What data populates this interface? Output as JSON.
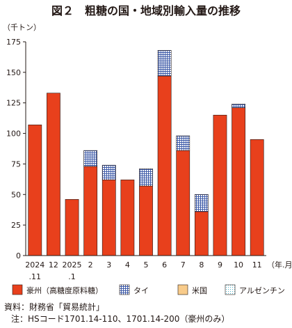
{
  "chart_data": {
    "type": "bar",
    "title": "図２　粗糖の国・地域別輸入量の推移",
    "ylabel": "（千トン）",
    "xlabel": "（年.月）",
    "ylim": [
      0,
      175
    ],
    "yticks": [
      0,
      25,
      50,
      75,
      100,
      125,
      150,
      175
    ],
    "grid": false,
    "legend_position": "bottom",
    "categories": [
      [
        "2024",
        ".11"
      ],
      [
        "12"
      ],
      [
        "2025",
        ".1"
      ],
      [
        "2"
      ],
      [
        "3"
      ],
      [
        "4"
      ],
      [
        "5"
      ],
      [
        "6"
      ],
      [
        "7"
      ],
      [
        "8"
      ],
      [
        "9"
      ],
      [
        "10"
      ],
      [
        "11"
      ]
    ],
    "stacked": true,
    "series": [
      {
        "name": "豪州（高糖度原料糖）",
        "color": "#e8401c",
        "pattern": "solid",
        "values": [
          107,
          133,
          46,
          73,
          62,
          62,
          57,
          147,
          86,
          36,
          115,
          121,
          95
        ]
      },
      {
        "name": "タイ",
        "color": "#3d5aa8",
        "pattern": "grid",
        "values": [
          0,
          0,
          0,
          13,
          12,
          0,
          14,
          21,
          12,
          14,
          0,
          3,
          0
        ]
      },
      {
        "name": "米国",
        "color": "#f8cb8a",
        "pattern": "solid",
        "values": [
          0,
          0,
          0,
          0,
          0,
          0,
          0,
          0,
          0,
          0,
          0,
          0,
          0
        ]
      },
      {
        "name": "アルゼンチン",
        "color": "#4ab0c8",
        "pattern": "dots",
        "values": [
          0,
          0,
          0,
          0,
          0,
          0,
          0,
          0,
          0,
          0,
          0,
          0,
          0
        ]
      }
    ]
  },
  "notes": {
    "source": "資料：財務省「貿易統計」",
    "note": "注：HSコード1701.14-110、1701.14-200（豪州のみ）"
  }
}
